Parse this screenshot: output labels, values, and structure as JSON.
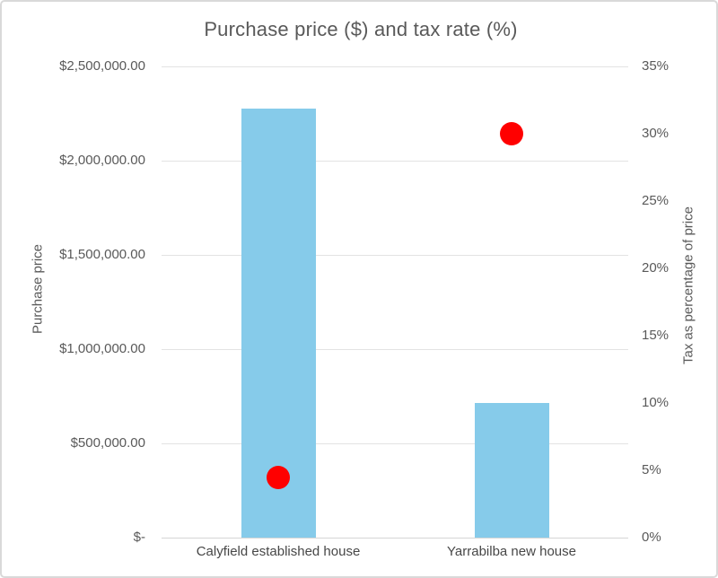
{
  "chart": {
    "title": "Purchase price ($) and tax rate (%)",
    "left_axis": {
      "title": "Purchase price",
      "tick_labels": [
        "$2,500,000.00",
        "$2,000,000.00",
        "$1,500,000.00",
        "$1,000,000.00",
        "$500,000.00",
        "$-"
      ],
      "min": 0,
      "max": 2500000
    },
    "right_axis": {
      "title": "Tax as percentage of price",
      "tick_labels": [
        "35%",
        "30%",
        "25%",
        "20%",
        "15%",
        "10%",
        "5%",
        "0%"
      ],
      "min": 0,
      "max": 35
    },
    "colors": {
      "bar": "#86CBEA",
      "dot": "#FF0000",
      "gridline": "#E3E3E3",
      "axis_line": "#D6D6D6",
      "text": "#595959",
      "border": "#D9D9D9"
    }
  },
  "chart_data": {
    "type": "bar",
    "subtype": "dual-axis bar + scatter markers",
    "title": "Purchase price ($) and tax rate (%)",
    "categories": [
      "Calyfield established house",
      "Yarrabilba new house"
    ],
    "series": [
      {
        "name": "Purchase price",
        "type": "bar",
        "axis": "left",
        "values": [
          2275000,
          715000
        ]
      },
      {
        "name": "Tax as percentage of price",
        "type": "scatter",
        "axis": "right",
        "values": [
          4.5,
          30
        ]
      }
    ],
    "xlabel": "",
    "left_ylabel": "Purchase price",
    "right_ylabel": "Tax as percentage of price",
    "left_ylim": [
      0,
      2500000
    ],
    "right_ylim": [
      0,
      35
    ],
    "grid": "horizontal gridlines at $500,000 intervals",
    "legend_position": "none"
  }
}
